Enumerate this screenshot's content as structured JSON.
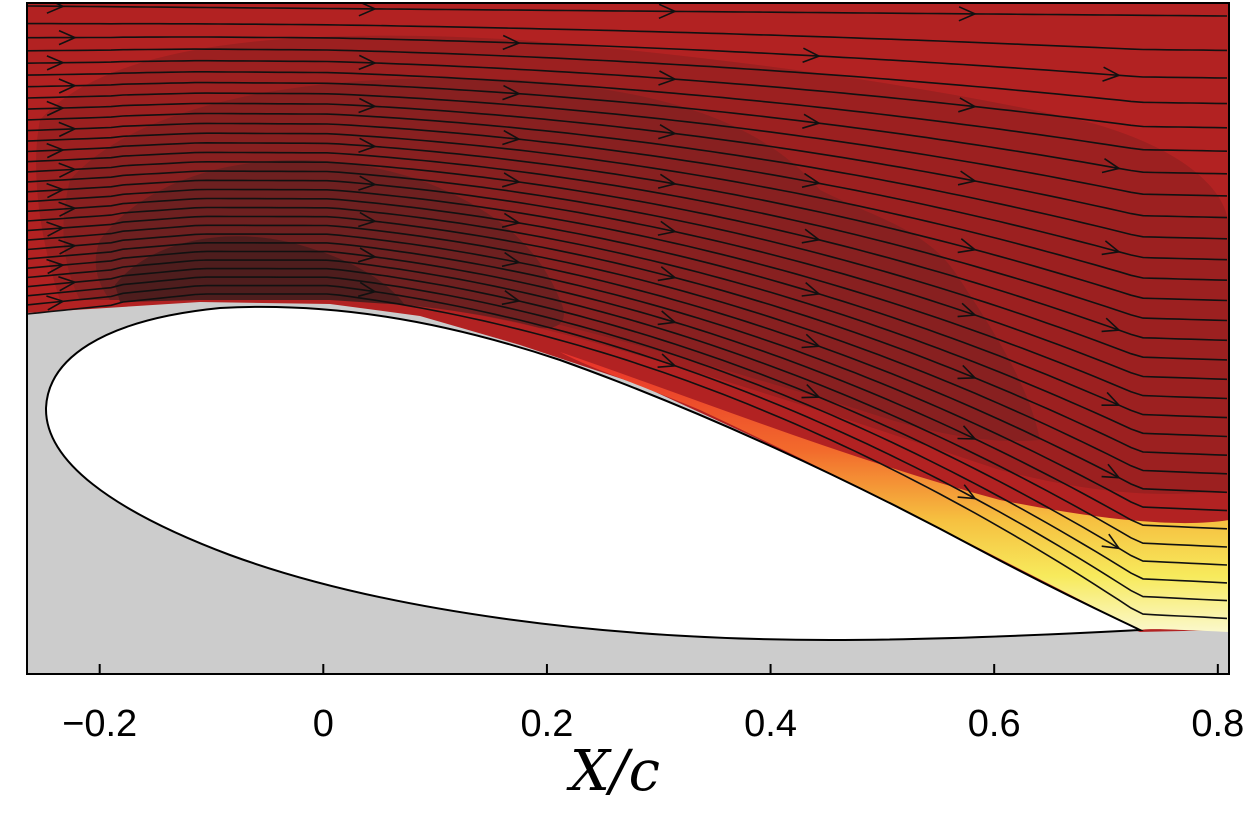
{
  "chart_data": {
    "type": "streamline-contour",
    "title": "",
    "xlabel": "X/c",
    "ylabel": "",
    "xlim": [
      -0.265,
      0.81
    ],
    "xticks": [
      -0.2,
      0,
      0.2,
      0.4,
      0.6,
      0.8
    ],
    "xtick_labels": [
      "−0.2",
      "0",
      "0.2",
      "0.4",
      "0.6",
      "0.8"
    ],
    "colors": {
      "flow": "#b22222",
      "dark_region_1": "#9c2020",
      "dark_region_2": "#882020",
      "dark_region_3": "#6e2020",
      "dark_region_4": "#4e1d1d",
      "masked": "#cccccc",
      "airfoil": "#ffffff",
      "wake_orange": "#f06a2a",
      "wake_yellow": "#f7e95a",
      "wake_pale": "#fbf7c0"
    },
    "streamline_count": 30,
    "annotations": []
  }
}
